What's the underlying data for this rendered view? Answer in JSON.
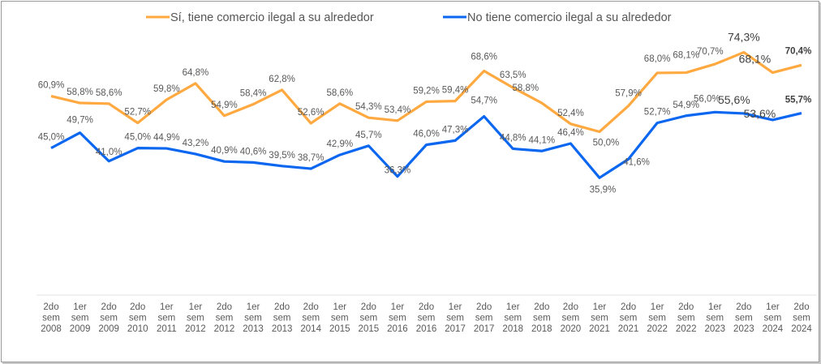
{
  "chart_data": {
    "type": "line",
    "title": "",
    "xlabel": "",
    "ylabel": "",
    "ylim": [
      0,
      75
    ],
    "grid": false,
    "legend_position": "top",
    "categories": [
      [
        "2do",
        "sem",
        "2008"
      ],
      [
        "1er",
        "sem",
        "2009"
      ],
      [
        "2do",
        "sem",
        "2009"
      ],
      [
        "2do",
        "sem",
        "2010"
      ],
      [
        "1er",
        "sem",
        "2011"
      ],
      [
        "1er",
        "sem",
        "2012"
      ],
      [
        "2do",
        "sem",
        "2012"
      ],
      [
        "1er",
        "sem",
        "2013"
      ],
      [
        "2do",
        "sem",
        "2013"
      ],
      [
        "2do",
        "sem",
        "2014"
      ],
      [
        "1er",
        "sem",
        "2015"
      ],
      [
        "2do",
        "sem",
        "2015"
      ],
      [
        "1er",
        "sem",
        "2016"
      ],
      [
        "2do",
        "sem",
        "2016"
      ],
      [
        "1er",
        "sem",
        "2017"
      ],
      [
        "2do",
        "sem",
        "2017"
      ],
      [
        "1er",
        "sem",
        "2018"
      ],
      [
        "2do",
        "sem",
        "2018"
      ],
      [
        "2do",
        "sem",
        "2020"
      ],
      [
        "1er",
        "sem",
        "2021"
      ],
      [
        "2do",
        "sem",
        "2021"
      ],
      [
        "1er",
        "sem",
        "2022"
      ],
      [
        "2do",
        "sem",
        "2022"
      ],
      [
        "1er",
        "sem",
        "2023"
      ],
      [
        "2do",
        "sem",
        "2023"
      ],
      [
        "1er",
        "sem",
        "2024"
      ],
      [
        "2do",
        "sem",
        "2024"
      ]
    ],
    "series": [
      {
        "name": "Sí, tiene comercio ilegal a su alrededor",
        "color": "#FFA940",
        "values": [
          60.9,
          58.8,
          58.6,
          52.7,
          59.8,
          64.8,
          54.9,
          58.4,
          62.8,
          52.6,
          58.6,
          54.3,
          53.4,
          59.2,
          59.4,
          68.6,
          63.5,
          58.8,
          52.4,
          50.0,
          57.9,
          68.0,
          68.1,
          70.7,
          74.3,
          68.1,
          70.4
        ],
        "labels": [
          "60,9%",
          "58,8%",
          "58,6%",
          "52,7%",
          "59,8%",
          "64,8%",
          "54,9%",
          "58,4%",
          "62,8%",
          "52,6%",
          "58,6%",
          "54,3%",
          "53,4%",
          "59,2%",
          "59,4%",
          "68,6%",
          "63,5%",
          "58,8%",
          "52,4%",
          "50,0%",
          "57,9%",
          "68,0%",
          "68,1%",
          "70,7%",
          "74,3%",
          "68,1%",
          "70,4%"
        ]
      },
      {
        "name": "No tiene comercio ilegal a su alrededor",
        "color": "#0B66F0",
        "values": [
          45.0,
          49.7,
          41.0,
          45.0,
          44.9,
          43.2,
          40.9,
          40.6,
          39.5,
          38.7,
          42.9,
          45.7,
          36.3,
          46.0,
          47.3,
          54.7,
          44.8,
          44.1,
          46.4,
          35.9,
          41.6,
          52.7,
          54.9,
          56.0,
          55.6,
          53.6,
          55.7
        ],
        "labels": [
          "45,0%",
          "49,7%",
          "41,0%",
          "45,0%",
          "44,9%",
          "43,2%",
          "40,9%",
          "40,6%",
          "39,5%",
          "38,7%",
          "42,9%",
          "45,7%",
          "36,3%",
          "46,0%",
          "47,3%",
          "54,7%",
          "44,8%",
          "44,1%",
          "46,4%",
          "35,9%",
          "41,6%",
          "52,7%",
          "54,9%",
          "56,0%",
          "55,6%",
          "53,6%",
          "55,7%"
        ]
      }
    ]
  }
}
